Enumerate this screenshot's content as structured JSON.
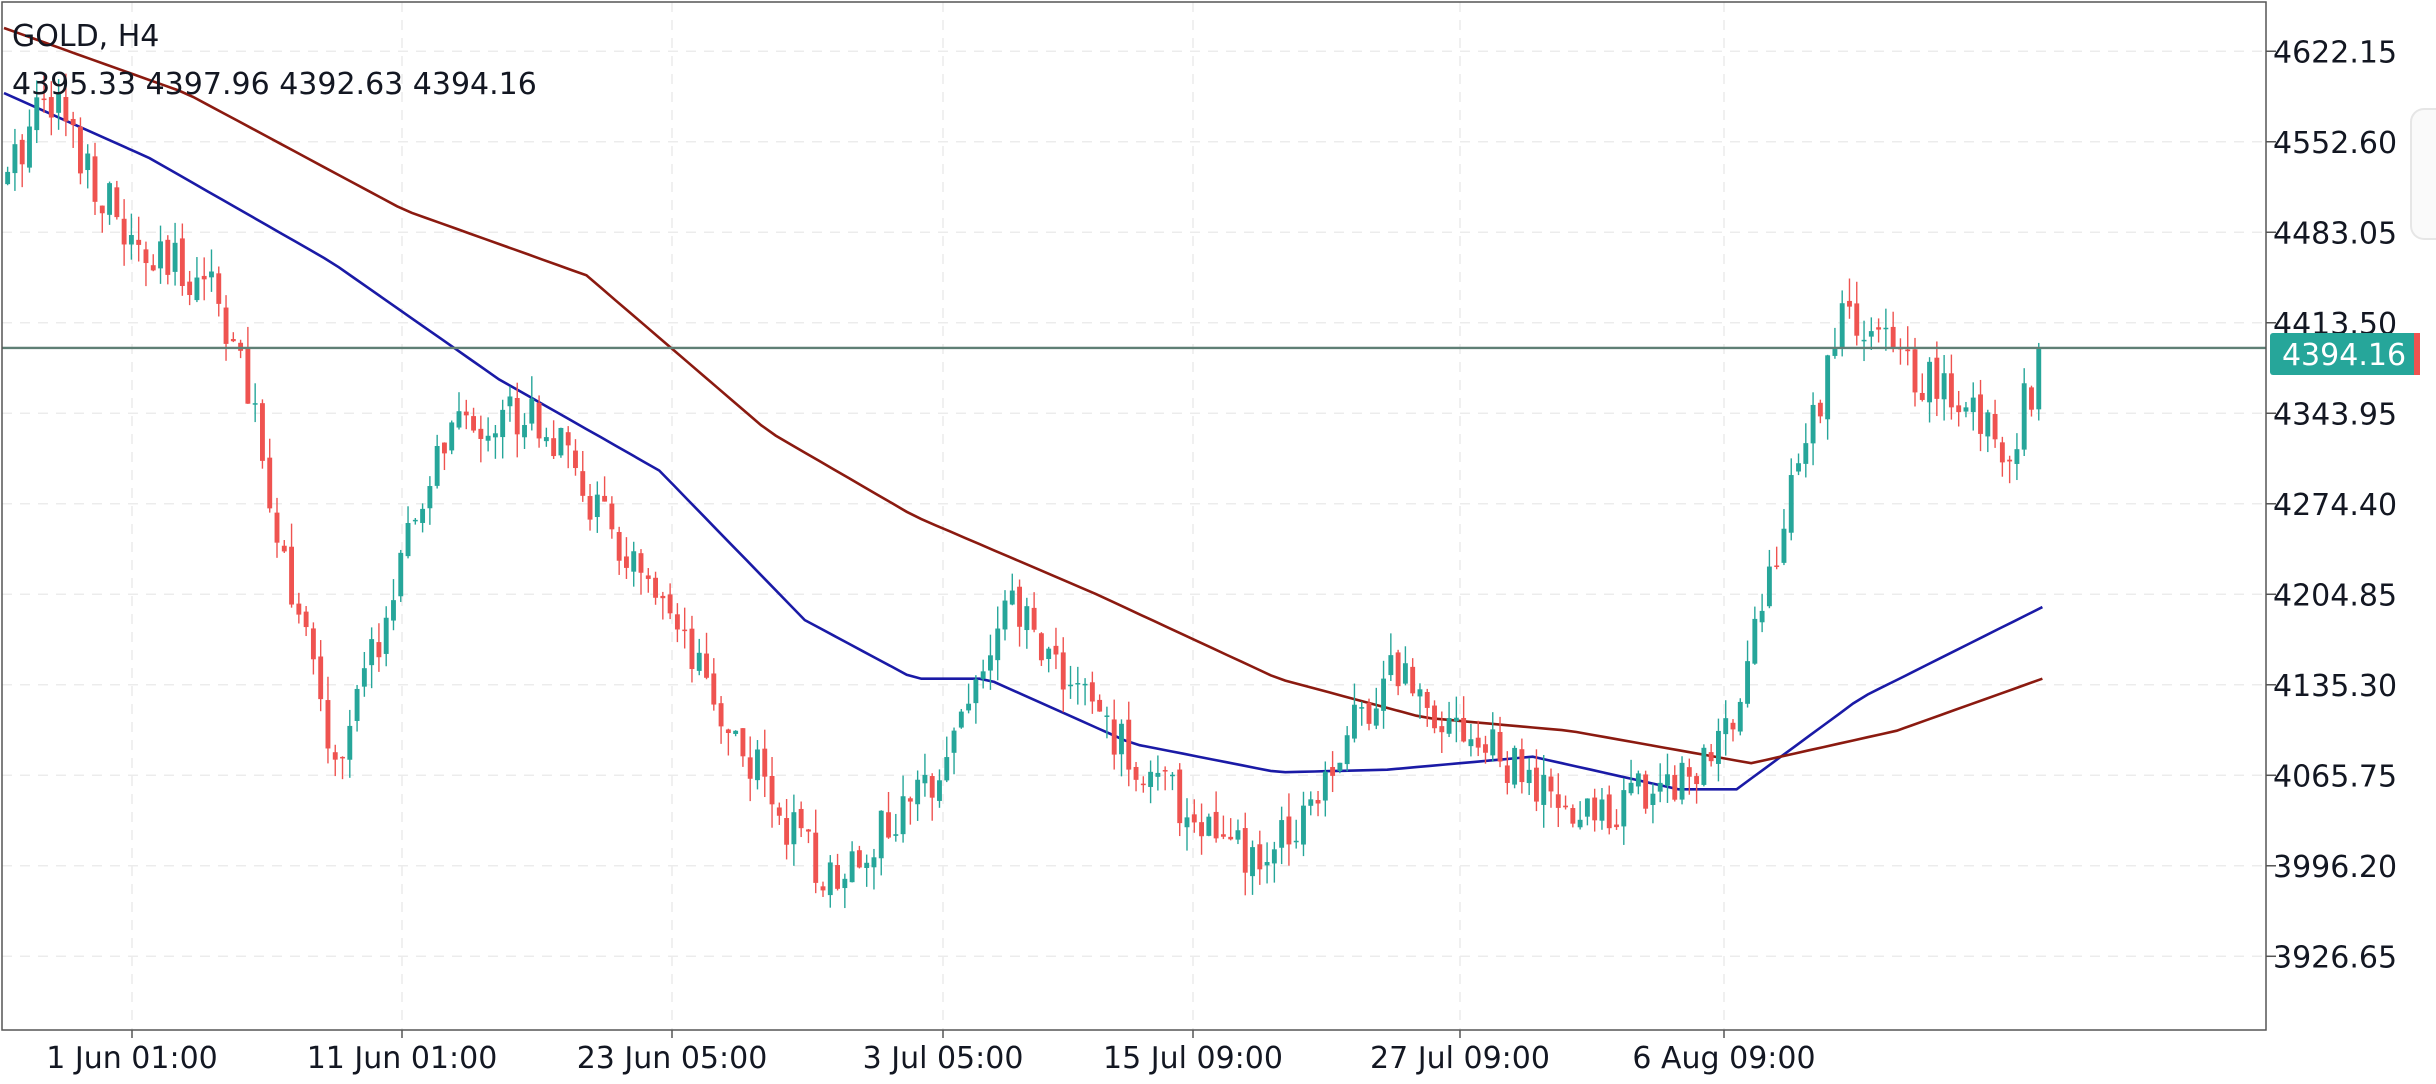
{
  "header": {
    "symbol_timeframe": "GOLD, H4",
    "ohlc": "4395.33 4397.96 4392.63 4394.16"
  },
  "price_badge": "4394.16",
  "colors": {
    "bull": "#26a69a",
    "bear": "#ef5350",
    "ma_fast": "#1a1aa6",
    "ma_slow": "#8b1a10",
    "price_line": "#5f7f75",
    "badge": "#26a69a"
  },
  "chart_data": {
    "type": "candlestick",
    "symbol": "GOLD",
    "timeframe": "H4",
    "y_tick_labels": [
      "4622.15",
      "4552.60",
      "4483.05",
      "4413.50",
      "4343.95",
      "4274.40",
      "4204.85",
      "4135.30",
      "4065.75",
      "3996.20",
      "3926.65"
    ],
    "x_tick_labels": [
      "1 Jun 01:00",
      "11 Jun 01:00",
      "23 Jun 05:00",
      "3 Jul 05:00",
      "15 Jul 09:00",
      "27 Jul 09:00",
      "6 Aug 09:00"
    ],
    "grid": true,
    "ylim": [
      3870,
      4660
    ],
    "last_price": 4394.16,
    "bar_count": 280,
    "anchor_bars": [
      0,
      5,
      18,
      28,
      32,
      45,
      60,
      72,
      95,
      112,
      125,
      138,
      155,
      172,
      190,
      215,
      235,
      252,
      275,
      280
    ],
    "anchor_closes": [
      4520,
      4600,
      4460,
      4450,
      4380,
      4070,
      4325,
      4350,
      4140,
      3985,
      4045,
      4195,
      4075,
      3990,
      4150,
      4030,
      4080,
      4420,
      4320,
      4394.16
    ],
    "moving_averages": [
      {
        "color": "#1a1aa6",
        "anchor_bars": [
          0,
          20,
          45,
          68,
          90,
          110,
          125,
          135,
          155,
          175,
          190,
          210,
          230,
          238,
          255,
          280
        ],
        "anchor_values": [
          4590,
          4540,
          4460,
          4370,
          4300,
          4185,
          4140,
          4140,
          4090,
          4068,
          4070,
          4080,
          4055,
          4055,
          4125,
          4195
        ]
      },
      {
        "color": "#8b1a10",
        "anchor_bars": [
          0,
          25,
          55,
          80,
          105,
          125,
          150,
          175,
          195,
          215,
          240,
          260,
          280
        ],
        "anchor_values": [
          4640,
          4590,
          4500,
          4450,
          4330,
          4265,
          4205,
          4140,
          4110,
          4100,
          4075,
          4100,
          4140
        ]
      }
    ]
  }
}
